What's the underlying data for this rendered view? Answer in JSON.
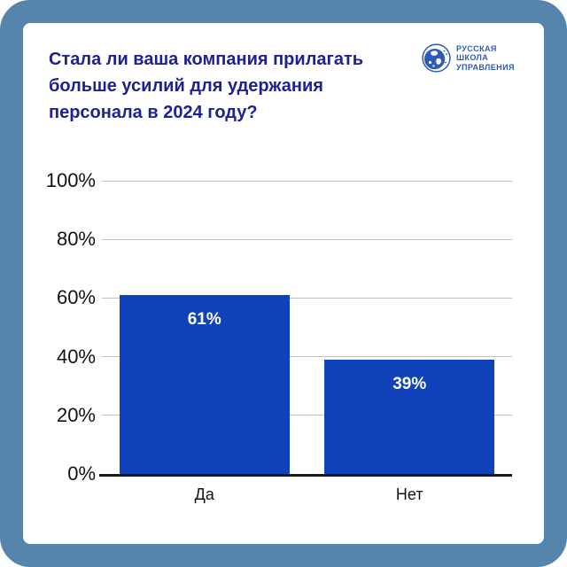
{
  "page": {
    "frame_color": "#5584ad",
    "card_color": "#ffffff"
  },
  "header": {
    "title": "Стала ли ваша компания прилагать\nбольше усилий для удержания\nперсонала в 2024 году?",
    "title_color": "#1e2191",
    "logo": {
      "icon": "globe-icon",
      "lines": [
        "РУССКАЯ",
        "ШКОЛА",
        "УПРАВЛЕНИЯ"
      ],
      "color": "#2d5bb7"
    }
  },
  "chart_data": {
    "type": "bar",
    "title": "Стала ли ваша компания прилагать больше усилий для удержания персонала в 2024 году?",
    "categories": [
      "Да",
      "Нет"
    ],
    "values": [
      61,
      39
    ],
    "bar_labels": [
      "61%",
      "39%"
    ],
    "xlabel": "",
    "ylabel": "",
    "ylim": [
      0,
      100
    ],
    "yticks": [
      0,
      20,
      40,
      60,
      80,
      100
    ],
    "ytick_labels": [
      "0%",
      "20%",
      "40%",
      "60%",
      "80%",
      "100%"
    ],
    "grid": true,
    "legend": "none",
    "bar_color": "#1042ba",
    "bar_value_label_color": "#ffffff",
    "gridline_color": "#c2c2c2",
    "axis_line_color": "#1a1a1a",
    "tick_label_color": "#121212"
  }
}
